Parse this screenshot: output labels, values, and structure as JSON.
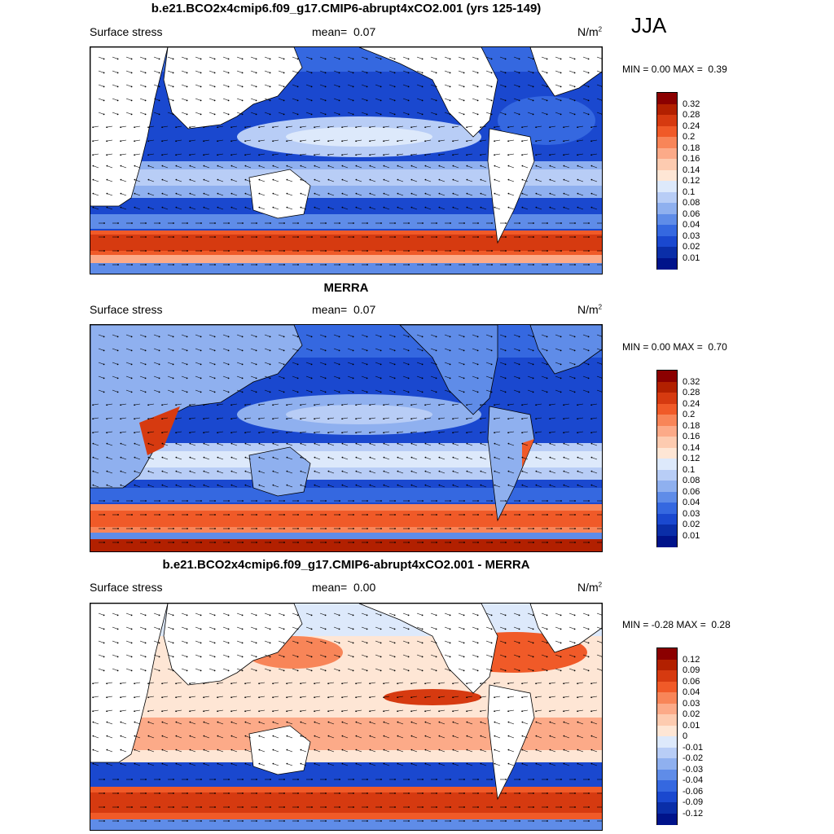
{
  "season": "JJA",
  "panels": [
    {
      "title": "b.e21.BCO2x4cmip6.f09_g17.CMIP6-abrupt4xCO2.001 (yrs 125-149)",
      "variable": "Surface stress",
      "mean_label": "mean=",
      "mean_value": "0.07",
      "units": "N/m",
      "units_sup": "2",
      "min_label": "MIN =",
      "min_value": "0.00",
      "max_label": "MAX =",
      "max_value": "0.39",
      "colorbar_ticks": [
        "0.32",
        "0.28",
        "0.24",
        "0.2",
        "0.18",
        "0.16",
        "0.14",
        "0.12",
        "0.1",
        "0.08",
        "0.06",
        "0.04",
        "0.03",
        "0.02",
        "0.01"
      ],
      "colorbar_colors": [
        "#8b0000",
        "#b22000",
        "#d63a10",
        "#f05a28",
        "#f88558",
        "#fcaa88",
        "#fdcbb0",
        "#fee6d5",
        "#dde9fb",
        "#b8cdf6",
        "#8fb0ef",
        "#5f8ce8",
        "#3568e0",
        "#1a48cf",
        "#0a2ea8",
        "#00138a"
      ]
    },
    {
      "title": "MERRA",
      "variable": "Surface stress",
      "mean_label": "mean=",
      "mean_value": "0.07",
      "units": "N/m",
      "units_sup": "2",
      "min_label": "MIN =",
      "min_value": "0.00",
      "max_label": "MAX =",
      "max_value": "0.70",
      "colorbar_ticks": [
        "0.32",
        "0.28",
        "0.24",
        "0.2",
        "0.18",
        "0.16",
        "0.14",
        "0.12",
        "0.1",
        "0.08",
        "0.06",
        "0.04",
        "0.03",
        "0.02",
        "0.01"
      ],
      "colorbar_colors": [
        "#8b0000",
        "#b22000",
        "#d63a10",
        "#f05a28",
        "#f88558",
        "#fcaa88",
        "#fdcbb0",
        "#fee6d5",
        "#dde9fb",
        "#b8cdf6",
        "#8fb0ef",
        "#5f8ce8",
        "#3568e0",
        "#1a48cf",
        "#0a2ea8",
        "#00138a"
      ]
    },
    {
      "title": "b.e21.BCO2x4cmip6.f09_g17.CMIP6-abrupt4xCO2.001 - MERRA",
      "variable": "Surface stress",
      "mean_label": "mean=",
      "mean_value": "0.00",
      "units": "N/m",
      "units_sup": "2",
      "min_label": "MIN =",
      "min_value": "-0.28",
      "max_label": "MAX =",
      "max_value": "0.28",
      "colorbar_ticks": [
        "0.12",
        "0.09",
        "0.06",
        "0.04",
        "0.03",
        "0.02",
        "0.01",
        "0",
        "-0.01",
        "-0.02",
        "-0.03",
        "-0.04",
        "-0.06",
        "-0.09",
        "-0.12"
      ],
      "colorbar_colors": [
        "#8b0000",
        "#b22000",
        "#d63a10",
        "#f05a28",
        "#f88558",
        "#fcaa88",
        "#fdcbb0",
        "#fee6d5",
        "#dde9fb",
        "#b8cdf6",
        "#8fb0ef",
        "#5f8ce8",
        "#3568e0",
        "#1a48cf",
        "#0a2ea8",
        "#00138a"
      ]
    }
  ],
  "colors": {
    "land": "#ffffff",
    "coast": "#000000",
    "vector": "#000000"
  }
}
